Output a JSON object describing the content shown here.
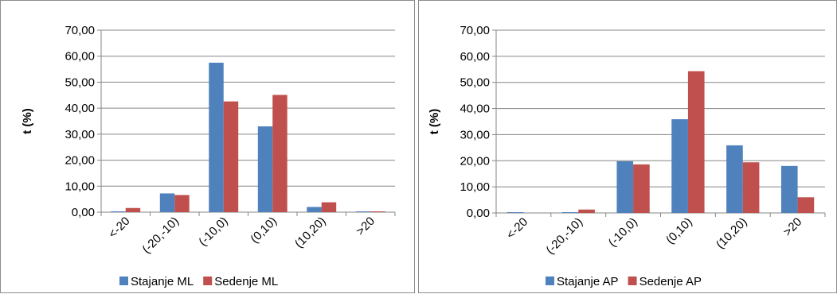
{
  "chart_data": [
    {
      "type": "bar",
      "ylabel": "t (%)",
      "ylim": [
        0,
        70
      ],
      "yticks": [
        "0,00",
        "10,00",
        "20,00",
        "30,00",
        "40,00",
        "50,00",
        "60,00",
        "70,00"
      ],
      "categories": [
        "<-20",
        "(-20,-10)",
        "(-10,0)",
        "(0,10)",
        "(10,20)",
        ">20"
      ],
      "grid": true,
      "legend_position": "bottom",
      "series": [
        {
          "name": "Stajanje ML",
          "color": "#4f81bd",
          "values": [
            0.3,
            7.2,
            57.5,
            33.0,
            2.0,
            0.3
          ]
        },
        {
          "name": "Sedenje ML",
          "color": "#c0504d",
          "values": [
            1.6,
            6.6,
            42.6,
            45.1,
            3.8,
            0.3
          ]
        }
      ]
    },
    {
      "type": "bar",
      "ylabel": "t (%)",
      "ylim": [
        0,
        70
      ],
      "yticks": [
        "0,00",
        "10,00",
        "20,00",
        "30,00",
        "40,00",
        "50,00",
        "60,00",
        "70,00"
      ],
      "categories": [
        "<-20",
        "(-20,-10)",
        "(-10,0)",
        "(0,10)",
        "(10,20)",
        ">20"
      ],
      "grid": true,
      "legend_position": "bottom",
      "series": [
        {
          "name": "Stajanje AP",
          "color": "#4f81bd",
          "values": [
            0.3,
            0.3,
            19.8,
            35.9,
            25.9,
            18.0
          ]
        },
        {
          "name": "Sedenje AP",
          "color": "#c0504d",
          "values": [
            0.0,
            1.3,
            18.6,
            54.3,
            19.4,
            6.0
          ]
        }
      ]
    }
  ]
}
